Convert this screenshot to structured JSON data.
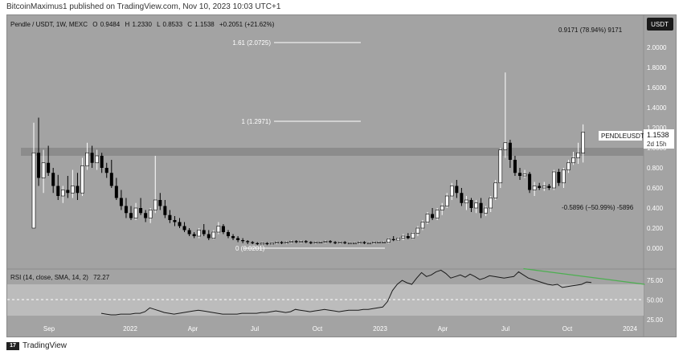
{
  "header": {
    "text": "BitcoinMaximus1 published on TradingView.com, Nov 10, 2023 10:03 UTC+1"
  },
  "footer": {
    "logo": "17",
    "brand": "TradingView"
  },
  "symbol_line": {
    "pair": "Pendle / USDT, 1W, MEXC",
    "o_label": "O",
    "o": "0.9484",
    "h_label": "H",
    "h": "1.2330",
    "l_label": "L",
    "l": "0.8533",
    "c_label": "C",
    "c": "1.1538",
    "change": "+0.2051 (+21.62%)"
  },
  "currency_button": "USDT",
  "price_tag": {
    "symbol": "PENDLEUSDT",
    "price": "1.1538",
    "countdown": "2d 15h"
  },
  "fib_labels": {
    "f161": "1.61 (2.0725)",
    "f1": "1 (1.2971)",
    "f0": "0 (0.0201)"
  },
  "measure_labels": {
    "up": "0.9171 (78.94%) 9171",
    "down": "-0.5896 (−50.99%) -5896"
  },
  "rsi_label": {
    "name": "RSI (14, close, SMA, 14, 2)",
    "value": "72.27"
  },
  "colors": {
    "panel_bg": "#a3a3a3",
    "up": "#ffffff",
    "down": "#000000",
    "resistance_band": "#8a8a8a",
    "rsi_band": "#bcbcbc",
    "divergence_line": "#4caf50"
  },
  "chart_data": [
    {
      "type": "candlestick",
      "timeframe": "1W",
      "x_tick_labels": [
        "Sep",
        "2022",
        "Apr",
        "Jul",
        "Oct",
        "2023",
        "Apr",
        "Jul",
        "Oct",
        "2024"
      ],
      "y_tick_labels": [
        "0.000",
        "0.200",
        "0.400",
        "0.600",
        "0.800",
        "1.0000",
        "1.2000",
        "1.4000",
        "1.6000",
        "1.8000",
        "2.0000"
      ],
      "ylim": [
        -0.1,
        2.25
      ],
      "grid": false,
      "horizontal_zone": {
        "from": 0.97,
        "to": 1.02
      },
      "fib_levels": [
        2.0725,
        1.2971,
        0.0201
      ],
      "ohlc": [
        [
          0.2,
          1.25,
          0.2,
          0.95
        ],
        [
          0.95,
          1.3,
          0.62,
          0.7
        ],
        [
          0.7,
          0.98,
          0.55,
          0.85
        ],
        [
          0.85,
          1.02,
          0.72,
          0.75
        ],
        [
          0.75,
          0.8,
          0.55,
          0.62
        ],
        [
          0.62,
          0.73,
          0.48,
          0.52
        ],
        [
          0.52,
          0.62,
          0.45,
          0.58
        ],
        [
          0.58,
          0.72,
          0.5,
          0.55
        ],
        [
          0.55,
          0.78,
          0.5,
          0.62
        ],
        [
          0.62,
          0.75,
          0.48,
          0.55
        ],
        [
          0.55,
          0.9,
          0.52,
          0.82
        ],
        [
          0.82,
          1.05,
          0.78,
          0.95
        ],
        [
          0.95,
          1.02,
          0.8,
          0.85
        ],
        [
          0.85,
          0.98,
          0.78,
          0.92
        ],
        [
          0.92,
          0.95,
          0.75,
          0.8
        ],
        [
          0.8,
          0.85,
          0.7,
          0.75
        ],
        [
          0.75,
          0.88,
          0.6,
          0.62
        ],
        [
          0.62,
          0.7,
          0.48,
          0.5
        ],
        [
          0.5,
          0.58,
          0.38,
          0.42
        ],
        [
          0.42,
          0.5,
          0.3,
          0.35
        ],
        [
          0.35,
          0.42,
          0.28,
          0.3
        ],
        [
          0.3,
          0.45,
          0.28,
          0.4
        ],
        [
          0.4,
          0.5,
          0.33,
          0.35
        ],
        [
          0.35,
          0.38,
          0.26,
          0.3
        ],
        [
          0.3,
          0.4,
          0.25,
          0.38
        ],
        [
          0.38,
          0.92,
          0.35,
          0.48
        ],
        [
          0.48,
          0.55,
          0.38,
          0.42
        ],
        [
          0.42,
          0.48,
          0.3,
          0.33
        ],
        [
          0.33,
          0.38,
          0.25,
          0.28
        ],
        [
          0.28,
          0.32,
          0.22,
          0.26
        ],
        [
          0.26,
          0.3,
          0.2,
          0.22
        ],
        [
          0.22,
          0.26,
          0.16,
          0.18
        ],
        [
          0.18,
          0.2,
          0.12,
          0.14
        ],
        [
          0.14,
          0.16,
          0.1,
          0.12
        ],
        [
          0.12,
          0.2,
          0.1,
          0.18
        ],
        [
          0.18,
          0.24,
          0.12,
          0.14
        ],
        [
          0.14,
          0.18,
          0.08,
          0.1
        ],
        [
          0.1,
          0.18,
          0.09,
          0.16
        ],
        [
          0.16,
          0.26,
          0.14,
          0.22
        ],
        [
          0.22,
          0.24,
          0.14,
          0.16
        ],
        [
          0.16,
          0.18,
          0.1,
          0.12
        ],
        [
          0.12,
          0.14,
          0.08,
          0.1
        ],
        [
          0.1,
          0.12,
          0.06,
          0.08
        ],
        [
          0.08,
          0.1,
          0.05,
          0.07
        ],
        [
          0.07,
          0.08,
          0.04,
          0.06
        ],
        [
          0.06,
          0.07,
          0.04,
          0.05
        ],
        [
          0.05,
          0.06,
          0.03,
          0.04
        ],
        [
          0.04,
          0.06,
          0.03,
          0.05
        ],
        [
          0.05,
          0.06,
          0.03,
          0.04
        ],
        [
          0.04,
          0.06,
          0.03,
          0.05
        ],
        [
          0.05,
          0.07,
          0.04,
          0.06
        ],
        [
          0.06,
          0.07,
          0.04,
          0.05
        ],
        [
          0.05,
          0.07,
          0.04,
          0.06
        ],
        [
          0.06,
          0.08,
          0.05,
          0.07
        ],
        [
          0.07,
          0.08,
          0.05,
          0.06
        ],
        [
          0.06,
          0.08,
          0.05,
          0.07
        ],
        [
          0.07,
          0.08,
          0.05,
          0.06
        ],
        [
          0.06,
          0.07,
          0.04,
          0.05
        ],
        [
          0.05,
          0.07,
          0.04,
          0.06
        ],
        [
          0.06,
          0.07,
          0.05,
          0.06
        ],
        [
          0.06,
          0.08,
          0.05,
          0.07
        ],
        [
          0.07,
          0.08,
          0.05,
          0.06
        ],
        [
          0.06,
          0.07,
          0.04,
          0.05
        ],
        [
          0.05,
          0.07,
          0.04,
          0.06
        ],
        [
          0.06,
          0.07,
          0.04,
          0.05
        ],
        [
          0.05,
          0.06,
          0.04,
          0.05
        ],
        [
          0.05,
          0.06,
          0.04,
          0.05
        ],
        [
          0.05,
          0.07,
          0.04,
          0.06
        ],
        [
          0.06,
          0.07,
          0.04,
          0.05
        ],
        [
          0.05,
          0.06,
          0.04,
          0.05
        ],
        [
          0.05,
          0.07,
          0.04,
          0.06
        ],
        [
          0.06,
          0.07,
          0.05,
          0.06
        ],
        [
          0.06,
          0.07,
          0.05,
          0.06
        ],
        [
          0.06,
          0.1,
          0.05,
          0.09
        ],
        [
          0.09,
          0.12,
          0.07,
          0.08
        ],
        [
          0.08,
          0.11,
          0.07,
          0.1
        ],
        [
          0.1,
          0.14,
          0.08,
          0.12
        ],
        [
          0.12,
          0.15,
          0.09,
          0.1
        ],
        [
          0.1,
          0.16,
          0.09,
          0.15
        ],
        [
          0.15,
          0.22,
          0.12,
          0.2
        ],
        [
          0.2,
          0.28,
          0.18,
          0.26
        ],
        [
          0.26,
          0.36,
          0.24,
          0.34
        ],
        [
          0.34,
          0.4,
          0.28,
          0.3
        ],
        [
          0.3,
          0.4,
          0.28,
          0.38
        ],
        [
          0.38,
          0.45,
          0.33,
          0.42
        ],
        [
          0.42,
          0.55,
          0.4,
          0.52
        ],
        [
          0.52,
          0.65,
          0.48,
          0.62
        ],
        [
          0.62,
          0.68,
          0.5,
          0.55
        ],
        [
          0.55,
          0.6,
          0.42,
          0.45
        ],
        [
          0.45,
          0.52,
          0.38,
          0.48
        ],
        [
          0.48,
          0.5,
          0.36,
          0.4
        ],
        [
          0.4,
          0.48,
          0.35,
          0.45
        ],
        [
          0.45,
          0.5,
          0.3,
          0.35
        ],
        [
          0.35,
          0.42,
          0.32,
          0.4
        ],
        [
          0.4,
          0.52,
          0.36,
          0.5
        ],
        [
          0.5,
          0.68,
          0.48,
          0.65
        ],
        [
          0.65,
          1.0,
          0.6,
          0.98
        ],
        [
          0.98,
          1.75,
          0.9,
          1.05
        ],
        [
          1.05,
          1.08,
          0.8,
          0.88
        ],
        [
          0.88,
          0.92,
          0.72,
          0.75
        ],
        [
          0.75,
          0.8,
          0.68,
          0.72
        ],
        [
          0.72,
          0.78,
          0.7,
          0.74
        ],
        [
          0.74,
          0.76,
          0.55,
          0.58
        ],
        [
          0.58,
          0.66,
          0.52,
          0.62
        ],
        [
          0.62,
          0.65,
          0.58,
          0.6
        ],
        [
          0.6,
          0.66,
          0.57,
          0.62
        ],
        [
          0.62,
          0.64,
          0.58,
          0.6
        ],
        [
          0.6,
          0.78,
          0.58,
          0.76
        ],
        [
          0.76,
          0.79,
          0.62,
          0.65
        ],
        [
          0.65,
          0.8,
          0.6,
          0.78
        ],
        [
          0.78,
          0.88,
          0.75,
          0.85
        ],
        [
          0.85,
          0.96,
          0.83,
          0.9
        ],
        [
          0.9,
          1.05,
          0.84,
          0.95
        ],
        [
          0.9484,
          1.233,
          0.8533,
          1.1538
        ]
      ]
    },
    {
      "type": "line",
      "title": "RSI (14, close, SMA, 14, 2)",
      "y_tick_labels": [
        "25.00",
        "50.00",
        "75.00"
      ],
      "ylim": [
        22,
        95
      ],
      "band": [
        30,
        70
      ],
      "midline": 50,
      "last_value": 72.27,
      "divergence_line": [
        [
          87,
          90
        ],
        [
          114,
          70
        ]
      ],
      "values": [
        33,
        32,
        31,
        31,
        32,
        32,
        32,
        33,
        33,
        35,
        40,
        38,
        36,
        34,
        33,
        32,
        33,
        34,
        35,
        36,
        37,
        36,
        35,
        34,
        33,
        32,
        32,
        32,
        32,
        33,
        33,
        33,
        33,
        34,
        34,
        35,
        36,
        35,
        34,
        35,
        38,
        37,
        36,
        35,
        36,
        37,
        38,
        37,
        36,
        35,
        36,
        37,
        37,
        37,
        38,
        38,
        39,
        40,
        41,
        48,
        62,
        70,
        75,
        72,
        70,
        78,
        85,
        80,
        82,
        86,
        88,
        84,
        78,
        80,
        82,
        79,
        83,
        80,
        76,
        78,
        81,
        80,
        79,
        78,
        79,
        80,
        86,
        82,
        78,
        76,
        74,
        72,
        70,
        69,
        70,
        66,
        67,
        68,
        69,
        70,
        73,
        72.27
      ]
    }
  ]
}
